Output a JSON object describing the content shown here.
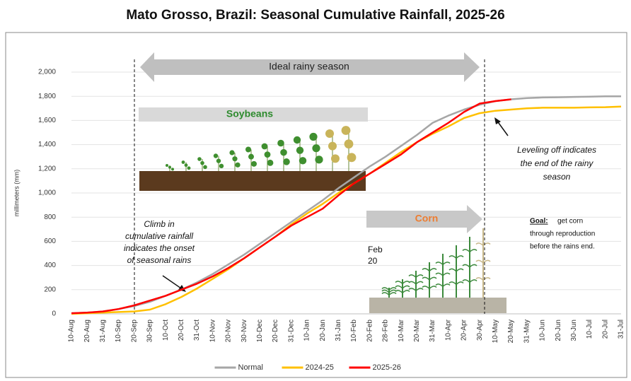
{
  "chart_data": {
    "type": "line",
    "title": "Mato Grosso, Brazil:  Seasonal Cumulative Rainfall, 2025-26",
    "y_label": "millimeters (mm)",
    "categories": [
      "10-Aug",
      "20-Aug",
      "31-Aug",
      "10-Sep",
      "20-Sep",
      "30-Sep",
      "10-Oct",
      "20-Oct",
      "31-Oct",
      "10-Nov",
      "20-Nov",
      "30-Nov",
      "10-Dec",
      "20-Dec",
      "31-Dec",
      "10-Jan",
      "20-Jan",
      "31-Jan",
      "10-Feb",
      "20-Feb",
      "28-Feb",
      "10-Mar",
      "20-Mar",
      "31-Mar",
      "10-Apr",
      "20-Apr",
      "30-Apr",
      "10-May",
      "20-May",
      "31-May",
      "10-Jun",
      "20-Jun",
      "30-Jun",
      "10-Jul",
      "20-Jul",
      "31-Jul"
    ],
    "series": [
      {
        "name": "Normal",
        "color": "#a6a6a6",
        "values": [
          5,
          10,
          20,
          40,
          65,
          100,
          150,
          200,
          260,
          330,
          410,
          490,
          580,
          670,
          760,
          850,
          940,
          1040,
          1130,
          1220,
          1300,
          1390,
          1480,
          1580,
          1640,
          1690,
          1730,
          1760,
          1775,
          1785,
          1790,
          1792,
          1795,
          1797,
          1800,
          1800
        ]
      },
      {
        "name": "2024-25",
        "color": "#ffc000",
        "values": [
          0,
          5,
          10,
          15,
          20,
          35,
          80,
          140,
          210,
          290,
          370,
          460,
          550,
          640,
          740,
          830,
          910,
          1000,
          1080,
          1160,
          1250,
          1340,
          1420,
          1490,
          1550,
          1620,
          1660,
          1680,
          1690,
          1700,
          1705,
          1705,
          1705,
          1708,
          1710,
          1715
        ]
      },
      {
        "name": "2025-26",
        "color": "#ff0000",
        "values": [
          5,
          10,
          20,
          40,
          70,
          110,
          150,
          200,
          250,
          310,
          380,
          460,
          550,
          640,
          730,
          800,
          870,
          980,
          1080,
          1160,
          1240,
          1320,
          1420,
          1500,
          1580,
          1670,
          1740,
          1760,
          1775,
          null,
          null,
          null,
          null,
          null,
          null,
          null
        ]
      }
    ],
    "ylim": [
      0,
      2000
    ],
    "yticks": [
      0,
      200,
      400,
      600,
      800,
      {
        "value": 1000,
        "label": "1,000"
      },
      {
        "value": 1200,
        "label": "1,200"
      },
      {
        "value": 1400,
        "label": "1,400"
      },
      {
        "value": 1600,
        "label": "1,600"
      },
      {
        "value": 1800,
        "label": "1,800"
      },
      {
        "value": 2000,
        "label": "2,000"
      }
    ],
    "grid": true,
    "legend": "bottom",
    "annotations": {
      "season": "Ideal rainy season",
      "soybeans": "Soybeans",
      "corn": "Corn",
      "feb": [
        "Feb",
        "20"
      ],
      "climb": [
        "Climb in",
        "cumulative rainfall",
        "indicates the onset",
        "of seasonal rains"
      ],
      "leveling": [
        "Leveling off indicates",
        "the end of the rainy",
        "season"
      ],
      "goal_label": "Goal:",
      "goal": [
        "get corn",
        "through reproduction",
        "before the rains end."
      ]
    }
  }
}
